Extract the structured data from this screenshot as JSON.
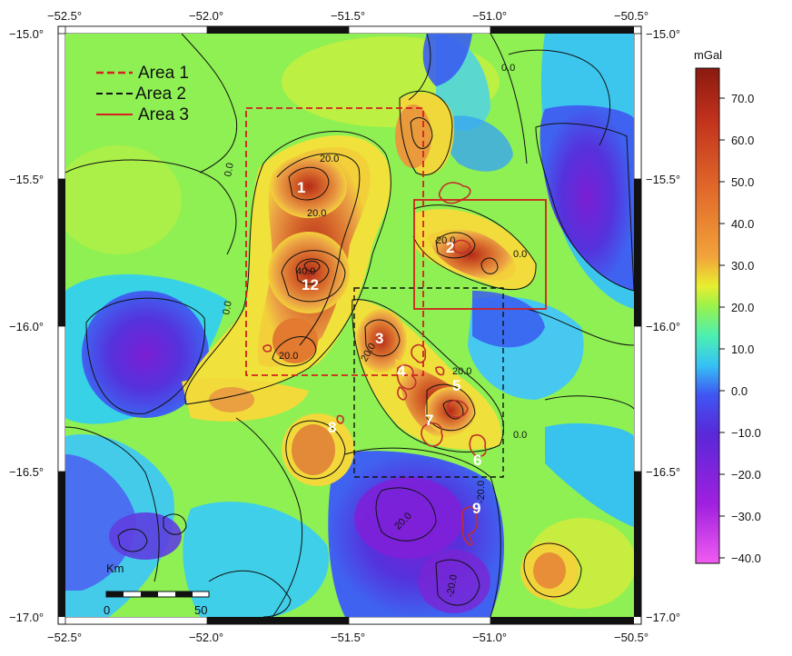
{
  "axes": {
    "x_ticks": [
      "−52.5°",
      "−52.0°",
      "−51.5°",
      "−51.0°",
      "−50.5°"
    ],
    "y_ticks": [
      "−15.0°",
      "−15.5°",
      "−16.0°",
      "−16.5°",
      "−17.0°"
    ]
  },
  "legend": [
    {
      "label": "Area 1",
      "color": "#d42020",
      "style": "dashed"
    },
    {
      "label": "Area 2",
      "color": "#111111",
      "style": "dashed"
    },
    {
      "label": "Area 3",
      "color": "#d42020",
      "style": "solid"
    }
  ],
  "regions": [
    "1",
    "12",
    "2",
    "3",
    "4",
    "5",
    "7",
    "6",
    "8",
    "9"
  ],
  "contour_labels": [
    "0.0",
    "20.0",
    "20.0",
    "40.0",
    "20.0",
    "20.0",
    "0.0",
    "0.0",
    "20.0",
    "20.0",
    "0.0",
    "0.0",
    "20.0",
    "-20.0",
    "-20.0"
  ],
  "scalebar": {
    "title": "Km",
    "start": "0",
    "end": "50"
  },
  "colorbar": {
    "unit": "mGal",
    "ticks": [
      "70.0",
      "60.0",
      "50.0",
      "40.0",
      "30.0",
      "20.0",
      "10.0",
      "0.0",
      "−10.0",
      "−20.0",
      "−30.0",
      "−40.0"
    ]
  },
  "colors": {
    "area_red": "#d42020",
    "contour": "#111111",
    "dike_red": "#c0302a"
  }
}
